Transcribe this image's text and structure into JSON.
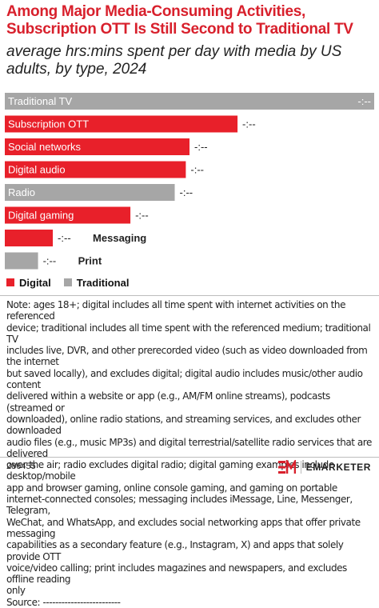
{
  "header": {
    "title": "Among Major Media-Consuming Activities, Subscription OTT Is Still Second to Traditional TV",
    "subtitle": "average hrs:mins spent per day with media by US adults, by type, 2024"
  },
  "colors": {
    "digital": "#e8202a",
    "traditional": "#a6a6a6"
  },
  "chart_data": {
    "type": "bar",
    "orientation": "horizontal",
    "title": "Among Major Media-Consuming Activities, Subscription OTT Is Still Second to Traditional TV",
    "subtitle": "average hrs:mins spent per day with media by US adults, by type, 2024",
    "categories": [
      "Traditional TV",
      "Subscription OTT",
      "Social networks",
      "Digital audio",
      "Radio",
      "Digital gaming",
      "Messaging",
      "Print"
    ],
    "values": [
      100,
      63,
      50,
      49,
      46,
      34,
      13,
      9
    ],
    "value_labels": [
      "-:--",
      "-:--",
      "-:--",
      "-:--",
      "-:--",
      "-:--",
      "-:--",
      "-:--"
    ],
    "types": [
      "Traditional",
      "Digital",
      "Digital",
      "Digital",
      "Traditional",
      "Digital",
      "Digital",
      "Traditional"
    ],
    "legend": [
      "Digital",
      "Traditional"
    ],
    "legend_position": "bottom-left",
    "xlim": [
      0,
      100
    ],
    "grid": false
  },
  "legend": {
    "digital": "Digital",
    "traditional": "Traditional"
  },
  "note": {
    "lines": [
      "Note: ages 18+; digital includes all time spent with internet activities on the referenced",
      "device; traditional includes all time spent with the referenced medium; traditional TV",
      "includes live, DVR, and other prerecorded video (such as video downloaded from the internet",
      "but saved locally), and excludes digital; digital audio includes music/other audio content",
      "delivered within a website or app (e.g., AM/FM online streams), podcasts (streamed or",
      "downloaded), online radio stations, and streaming services, and excludes other downloaded",
      "audio files (e.g., music MP3s) and digital terrestrial/satellite radio services that are delivered",
      "over the air; radio excludes digital radio; digital gaming examples include desktop/mobile",
      "app and browser gaming, online console gaming, and gaming on portable",
      "internet-connected consoles; messaging includes iMessage, Line, Messenger, Telegram,",
      "WeChat, and WhatsApp, and excludes social networking apps that offer private messaging",
      "capabilities as a secondary feature (e.g., Instagram, X) and apps that solely provide OTT",
      "voice/video calling; print includes magazines and newspapers, and excludes offline reading",
      "only",
      "Source: -------------------------"
    ]
  },
  "footer": {
    "id": "286455",
    "brand": "EMARKETER"
  }
}
